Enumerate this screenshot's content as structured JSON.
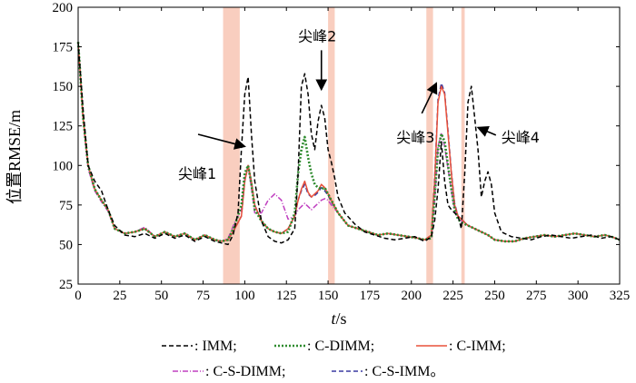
{
  "chart_data": {
    "type": "line",
    "xlabel": "t",
    "xlabel_unit": "/s",
    "ylabel": "位置RMSE/m",
    "xlim": [
      0,
      325
    ],
    "ylim": [
      25,
      200
    ],
    "xticks": [
      0,
      25,
      50,
      75,
      100,
      125,
      150,
      175,
      200,
      225,
      250,
      275,
      300,
      325
    ],
    "yticks": [
      25,
      50,
      75,
      100,
      125,
      150,
      175,
      200
    ],
    "grid": false,
    "legend_position": "bottom",
    "highlight_bands": [
      {
        "from": 87,
        "to": 97
      },
      {
        "from": 150,
        "to": 154
      },
      {
        "from": 209,
        "to": 213
      },
      {
        "from": 230,
        "to": 232
      }
    ],
    "annotations": [
      {
        "text": "尖峰1",
        "x": 60,
        "y": 95,
        "arrow_to": [
          100,
          112
        ]
      },
      {
        "text": "尖峰2",
        "x": 132,
        "y": 182,
        "arrow_to": [
          146,
          148
        ]
      },
      {
        "text": "尖峰3",
        "x": 191,
        "y": 118,
        "arrow_to": [
          215,
          152
        ]
      },
      {
        "text": "尖峰4",
        "x": 254,
        "y": 118,
        "arrow_to": [
          240,
          124
        ]
      }
    ],
    "series": [
      {
        "name": "IMM",
        "color": "#000000",
        "style": "dashed",
        "x": [
          0,
          3,
          6,
          10,
          14,
          18,
          22,
          28,
          34,
          40,
          46,
          52,
          58,
          64,
          70,
          76,
          82,
          86,
          90,
          93,
          96,
          98,
          100,
          102,
          104,
          106,
          110,
          114,
          118,
          122,
          126,
          130,
          132,
          134,
          136,
          138,
          140,
          142,
          144,
          146,
          148,
          150,
          152,
          154,
          156,
          160,
          166,
          172,
          178,
          184,
          190,
          196,
          202,
          208,
          212,
          214,
          216,
          218,
          220,
          222,
          224,
          226,
          228,
          230,
          232,
          234,
          236,
          238,
          240,
          242,
          244,
          246,
          248,
          250,
          254,
          260,
          266,
          272,
          278,
          284,
          290,
          296,
          302,
          308,
          314,
          320,
          325
        ],
        "y": [
          178,
          135,
          100,
          90,
          84,
          72,
          62,
          56,
          55,
          57,
          54,
          57,
          54,
          56,
          52,
          55,
          52,
          51,
          50,
          56,
          70,
          110,
          145,
          156,
          120,
          90,
          65,
          55,
          52,
          51,
          53,
          60,
          95,
          150,
          158,
          145,
          120,
          110,
          128,
          138,
          130,
          110,
          102,
          92,
          80,
          70,
          63,
          58,
          56,
          54,
          53,
          54,
          55,
          52,
          55,
          65,
          85,
          115,
          90,
          75,
          72,
          70,
          68,
          60,
          95,
          140,
          150,
          130,
          110,
          80,
          90,
          96,
          88,
          70,
          58,
          55,
          54,
          53,
          55,
          56,
          55,
          54,
          55,
          56,
          54,
          55,
          53
        ]
      },
      {
        "name": "C-DIMM",
        "color": "#2e8b2e",
        "style": "dotted",
        "x": [
          0,
          3,
          6,
          10,
          14,
          18,
          22,
          28,
          34,
          40,
          46,
          52,
          58,
          64,
          70,
          76,
          82,
          86,
          90,
          94,
          98,
          100,
          102,
          104,
          106,
          110,
          114,
          118,
          122,
          126,
          130,
          132,
          134,
          136,
          138,
          140,
          142,
          144,
          146,
          148,
          150,
          152,
          156,
          162,
          168,
          174,
          180,
          186,
          192,
          198,
          204,
          208,
          212,
          214,
          216,
          218,
          220,
          222,
          224,
          226,
          228,
          230,
          234,
          238,
          242,
          246,
          250,
          256,
          262,
          268,
          274,
          280,
          286,
          292,
          298,
          304,
          310,
          316,
          320,
          325
        ],
        "y": [
          178,
          130,
          100,
          85,
          78,
          72,
          60,
          57,
          58,
          60,
          55,
          58,
          55,
          57,
          53,
          56,
          53,
          52,
          53,
          62,
          75,
          95,
          100,
          88,
          72,
          65,
          60,
          58,
          57,
          58,
          70,
          95,
          110,
          118,
          105,
          95,
          88,
          86,
          85,
          86,
          82,
          78,
          70,
          62,
          60,
          58,
          56,
          57,
          56,
          55,
          54,
          53,
          54,
          80,
          110,
          120,
          115,
          100,
          85,
          72,
          66,
          64,
          62,
          60,
          58,
          56,
          53,
          52,
          52,
          54,
          55,
          56,
          55,
          56,
          57,
          56,
          55,
          56,
          55,
          53
        ]
      },
      {
        "name": "C-IMM",
        "color": "#e8503a",
        "style": "solid",
        "x": [
          0,
          3,
          6,
          10,
          14,
          18,
          22,
          28,
          34,
          40,
          46,
          52,
          58,
          64,
          70,
          76,
          82,
          86,
          90,
          94,
          98,
          100,
          102,
          104,
          106,
          110,
          114,
          118,
          122,
          126,
          130,
          132,
          134,
          136,
          138,
          140,
          142,
          144,
          146,
          148,
          150,
          152,
          156,
          162,
          168,
          174,
          180,
          186,
          192,
          198,
          204,
          208,
          212,
          214,
          216,
          218,
          220,
          222,
          224,
          226,
          228,
          230,
          234,
          238,
          242,
          246,
          250,
          256,
          262,
          268,
          274,
          280,
          286,
          292,
          298,
          304,
          310,
          316,
          320,
          325
        ],
        "y": [
          178,
          130,
          100,
          85,
          78,
          72,
          60,
          57,
          58,
          60,
          55,
          58,
          55,
          57,
          53,
          56,
          53,
          52,
          53,
          60,
          68,
          90,
          100,
          90,
          75,
          65,
          60,
          58,
          57,
          60,
          68,
          78,
          85,
          90,
          83,
          80,
          82,
          84,
          88,
          86,
          82,
          78,
          70,
          62,
          60,
          58,
          56,
          57,
          56,
          55,
          54,
          53,
          56,
          90,
          140,
          150,
          145,
          120,
          95,
          75,
          68,
          66,
          62,
          60,
          58,
          56,
          53,
          52,
          52,
          54,
          55,
          56,
          55,
          56,
          57,
          56,
          55,
          56,
          55,
          53
        ]
      },
      {
        "name": "C-S-DIMM",
        "color": "#c040c0",
        "style": "dashdot",
        "x": [
          0,
          3,
          6,
          10,
          14,
          18,
          22,
          28,
          34,
          40,
          46,
          52,
          58,
          64,
          70,
          76,
          82,
          86,
          90,
          94,
          98,
          100,
          102,
          104,
          106,
          110,
          114,
          118,
          122,
          126,
          130,
          132,
          134,
          136,
          138,
          140,
          142,
          144,
          146,
          148,
          150,
          152,
          156,
          162,
          168,
          174,
          180,
          186,
          192,
          198,
          204,
          208,
          212,
          214,
          216,
          218,
          220,
          222,
          224,
          226,
          228,
          230,
          234,
          238,
          242,
          246,
          250,
          256,
          262,
          268,
          274,
          280,
          286,
          292,
          298,
          304,
          310,
          316,
          320,
          325
        ],
        "y": [
          178,
          128,
          98,
          84,
          77,
          71,
          60,
          57,
          58,
          61,
          55,
          58,
          55,
          57,
          53,
          56,
          53,
          52,
          54,
          64,
          72,
          92,
          100,
          86,
          70,
          70,
          78,
          82,
          78,
          66,
          68,
          72,
          74,
          76,
          74,
          72,
          74,
          76,
          78,
          79,
          78,
          75,
          70,
          62,
          60,
          58,
          56,
          57,
          56,
          55,
          54,
          53,
          54,
          78,
          112,
          120,
          112,
          98,
          84,
          72,
          66,
          65,
          62,
          60,
          58,
          56,
          53,
          52,
          52,
          54,
          55,
          56,
          55,
          56,
          57,
          56,
          55,
          56,
          55,
          53
        ]
      },
      {
        "name": "C-S-IMM",
        "color": "#3a3aa0",
        "style": "dashed",
        "x": [
          0,
          3,
          6,
          10,
          14,
          18,
          22,
          28,
          34,
          40,
          46,
          52,
          58,
          64,
          70,
          76,
          82,
          86,
          90,
          94,
          98,
          100,
          102,
          104,
          106,
          110,
          114,
          118,
          122,
          126,
          130,
          132,
          134,
          136,
          138,
          140,
          142,
          144,
          146,
          148,
          150,
          152,
          156,
          162,
          168,
          174,
          180,
          186,
          192,
          198,
          204,
          208,
          212,
          214,
          216,
          218,
          220,
          222,
          224,
          226,
          228,
          230,
          234,
          238,
          242,
          246,
          250,
          256,
          262,
          268,
          274,
          280,
          286,
          292,
          298,
          304,
          310,
          316,
          320,
          325
        ],
        "y": [
          178,
          130,
          100,
          85,
          78,
          72,
          60,
          57,
          58,
          60,
          55,
          58,
          55,
          57,
          53,
          56,
          53,
          52,
          53,
          60,
          68,
          90,
          100,
          90,
          75,
          65,
          60,
          58,
          57,
          60,
          68,
          78,
          84,
          88,
          82,
          80,
          81,
          83,
          86,
          84,
          81,
          77,
          70,
          62,
          60,
          58,
          56,
          57,
          56,
          55,
          54,
          53,
          56,
          92,
          142,
          152,
          146,
          122,
          96,
          76,
          68,
          66,
          62,
          60,
          58,
          56,
          53,
          52,
          52,
          54,
          55,
          56,
          55,
          56,
          57,
          56,
          55,
          56,
          55,
          53
        ]
      }
    ],
    "legend": {
      "row1": [
        {
          "label": ": IMM;",
          "series": 0
        },
        {
          "label": ": C-DIMM;",
          "series": 1
        },
        {
          "label": ": C-IMM;",
          "series": 2
        }
      ],
      "row2": [
        {
          "label": ": C-S-DIMM;",
          "series": 3
        },
        {
          "label": ": C-S-IMM。",
          "series": 4
        }
      ]
    }
  }
}
